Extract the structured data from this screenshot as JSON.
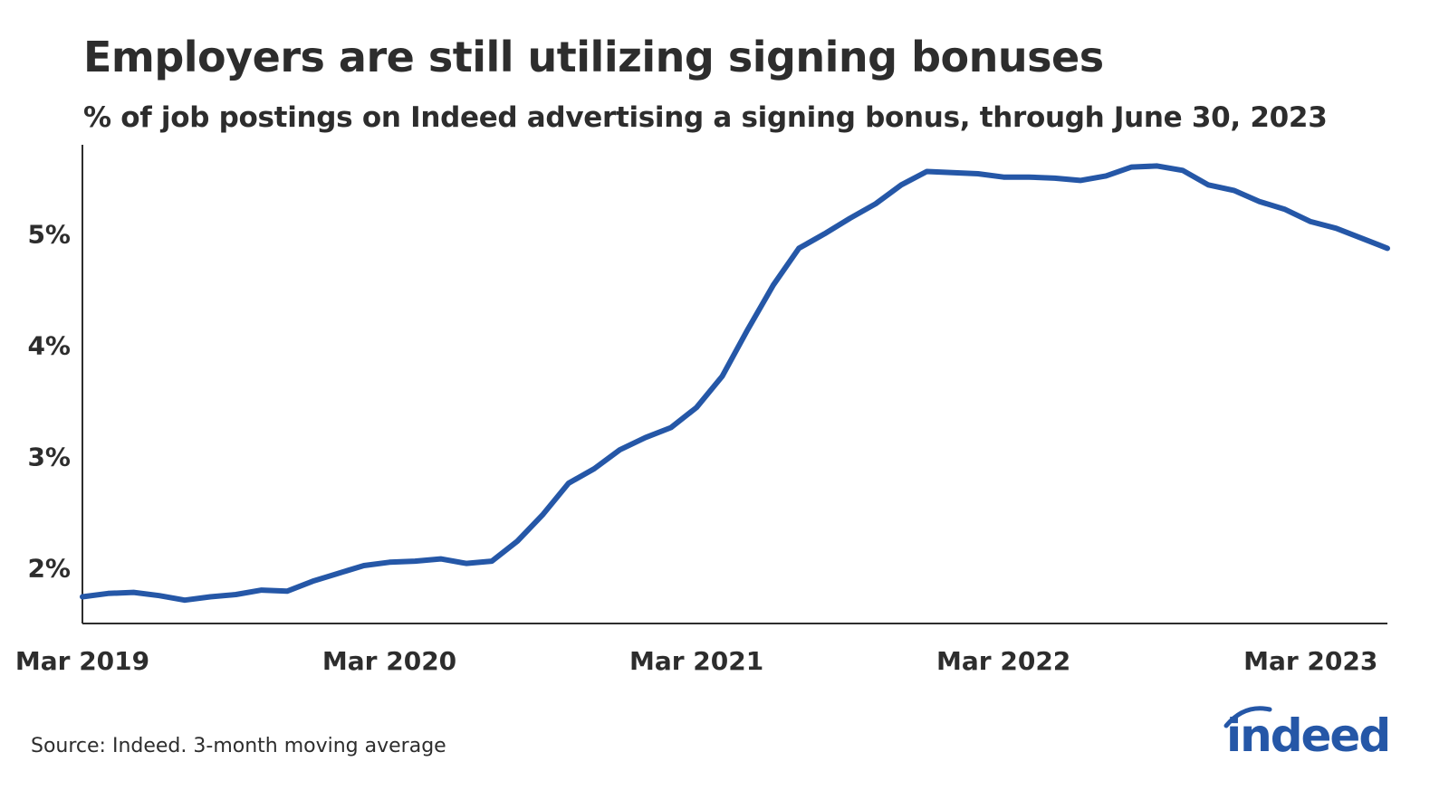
{
  "title": "Employers are still utilizing signing bonuses",
  "subtitle": "% of job postings on Indeed advertising a signing bonus, through June 30, 2023",
  "source": "Source: Indeed. 3-month moving average",
  "logo": {
    "text": "indeed",
    "color": "#2557a7"
  },
  "colors": {
    "line": "#2557a7",
    "axis": "#2d2d2d",
    "text": "#2d2d2d"
  },
  "chart_data": {
    "type": "line",
    "title": "Employers are still utilizing signing bonuses",
    "subtitle": "% of job postings on Indeed advertising a signing bonus, through June 30, 2023",
    "xlabel": "",
    "ylabel": "",
    "ylim": [
      1.5,
      5.8
    ],
    "xlim": [
      "2019-03",
      "2023-06"
    ],
    "grid": false,
    "legend": "none",
    "yticks": [
      2,
      3,
      4,
      5
    ],
    "ytick_labels": [
      "2%",
      "3%",
      "4%",
      "5%"
    ],
    "xticks": [
      "2019-03",
      "2020-03",
      "2021-03",
      "2022-03",
      "2023-03"
    ],
    "xtick_labels": [
      "Mar 2019",
      "Mar 2020",
      "Mar 2021",
      "Mar 2022",
      "Mar 2023"
    ],
    "series": [
      {
        "x": [
          "2019-03",
          "2019-04",
          "2019-05",
          "2019-06",
          "2019-07",
          "2019-08",
          "2019-09",
          "2019-10",
          "2019-11",
          "2019-12",
          "2020-01",
          "2020-02",
          "2020-03",
          "2020-04",
          "2020-05",
          "2020-06",
          "2020-07",
          "2020-08",
          "2020-09",
          "2020-10",
          "2020-11",
          "2020-12",
          "2021-01",
          "2021-02",
          "2021-03",
          "2021-04",
          "2021-05",
          "2021-06",
          "2021-07",
          "2021-08",
          "2021-09",
          "2021-10",
          "2021-11",
          "2021-12",
          "2022-01",
          "2022-02",
          "2022-03",
          "2022-04",
          "2022-05",
          "2022-06",
          "2022-07",
          "2022-08",
          "2022-09",
          "2022-10",
          "2022-11",
          "2022-12",
          "2023-01",
          "2023-02",
          "2023-03",
          "2023-04",
          "2023-05",
          "2023-06"
        ],
        "values": [
          1.74,
          1.77,
          1.78,
          1.75,
          1.71,
          1.74,
          1.76,
          1.8,
          1.79,
          1.88,
          1.95,
          2.02,
          2.05,
          2.06,
          2.08,
          2.04,
          2.06,
          2.24,
          2.48,
          2.76,
          2.89,
          3.06,
          3.17,
          3.26,
          3.44,
          3.72,
          4.14,
          4.54,
          4.87,
          5.0,
          5.14,
          5.27,
          5.44,
          5.56,
          5.55,
          5.54,
          5.51,
          5.51,
          5.5,
          5.48,
          5.52,
          5.6,
          5.61,
          5.57,
          5.44,
          5.39,
          5.29,
          5.22,
          5.11,
          5.05,
          4.96,
          4.87
        ]
      }
    ]
  }
}
